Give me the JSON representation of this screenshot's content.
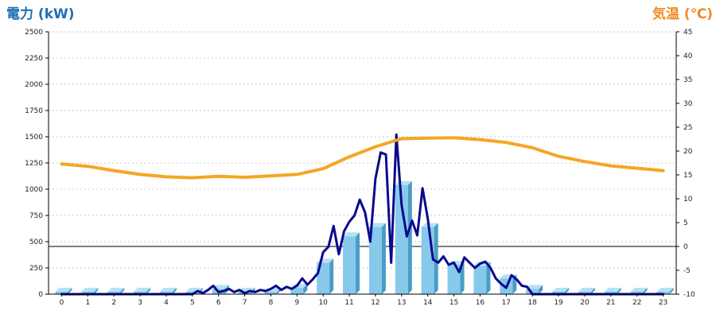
{
  "chart_data": {
    "type": "bar",
    "title_left": "電力 (kW)",
    "title_right": "気温 (℃)",
    "categories": [
      "0",
      "1",
      "2",
      "3",
      "4",
      "5",
      "6",
      "7",
      "8",
      "9",
      "10",
      "11",
      "12",
      "13",
      "14",
      "15",
      "16",
      "17",
      "18",
      "19",
      "20",
      "21",
      "22",
      "23"
    ],
    "y_left": {
      "ylim": [
        0,
        2500
      ],
      "ticks": [
        "0",
        "250",
        "500",
        "750",
        "1000",
        "1250",
        "1500",
        "1750",
        "2000",
        "2250",
        "2500"
      ]
    },
    "y_right": {
      "ylim": [
        -10,
        45
      ],
      "ticks": [
        "-10",
        "-5",
        "0",
        "5",
        "10",
        "15",
        "20",
        "25",
        "30",
        "35",
        "40",
        "45"
      ]
    },
    "grid": true,
    "zero_line_right": 0,
    "colors": {
      "bar": "#87c9eb",
      "bar_dark": "#4a9cc4",
      "bar_top": "#b5e0f5",
      "power_line": "#0a0a8c",
      "temp_line": "#f5a623",
      "left_title": "#1f6fb5",
      "right_title": "#f08a24"
    },
    "series": [
      {
        "kind": "bar",
        "axis": "left",
        "values": [
          0,
          0,
          0,
          0,
          0,
          0,
          50,
          20,
          20,
          60,
          300,
          550,
          640,
          1040,
          640,
          280,
          270,
          150,
          50,
          0,
          0,
          0,
          0,
          0
        ]
      },
      {
        "kind": "line",
        "axis": "left",
        "x": [
          0,
          1,
          2,
          3,
          4,
          5,
          5.2,
          5.4,
          5.6,
          5.8,
          6,
          6.2,
          6.4,
          6.6,
          6.8,
          7,
          7.2,
          7.4,
          7.6,
          7.8,
          8,
          8.2,
          8.4,
          8.6,
          8.8,
          9,
          9.2,
          9.4,
          9.6,
          9.8,
          10,
          10.2,
          10.4,
          10.6,
          10.8,
          11,
          11.2,
          11.4,
          11.6,
          11.8,
          12,
          12.2,
          12.4,
          12.6,
          12.8,
          13,
          13.2,
          13.4,
          13.6,
          13.8,
          14,
          14.2,
          14.4,
          14.6,
          14.8,
          15,
          15.2,
          15.4,
          15.6,
          15.8,
          16,
          16.2,
          16.4,
          16.6,
          16.8,
          17,
          17.2,
          17.4,
          17.6,
          17.8,
          18,
          18.2,
          19,
          20,
          21,
          22,
          23
        ],
        "values": [
          0,
          0,
          0,
          0,
          0,
          0,
          30,
          10,
          40,
          80,
          20,
          30,
          50,
          20,
          40,
          10,
          30,
          20,
          40,
          30,
          50,
          80,
          40,
          70,
          50,
          80,
          150,
          90,
          140,
          200,
          400,
          450,
          650,
          380,
          600,
          690,
          750,
          900,
          780,
          500,
          1100,
          1350,
          1330,
          300,
          1520,
          850,
          550,
          700,
          560,
          1010,
          720,
          330,
          300,
          360,
          280,
          300,
          210,
          350,
          300,
          250,
          290,
          310,
          250,
          150,
          100,
          60,
          180,
          140,
          80,
          70,
          0,
          0,
          0,
          0,
          0,
          0,
          0
        ],
        "color_key": "power_line"
      },
      {
        "kind": "line",
        "axis": "right",
        "name": "",
        "x": [
          0,
          1,
          2,
          3,
          4,
          5,
          6,
          7,
          8,
          9,
          10,
          11,
          12,
          13,
          14,
          15,
          16,
          17,
          18,
          19,
          20,
          21,
          22,
          23
        ],
        "values": [
          17.3,
          16.8,
          15.9,
          15.1,
          14.6,
          14.4,
          14.7,
          14.5,
          14.8,
          15.1,
          16.3,
          18.8,
          20.9,
          22.6,
          22.7,
          22.8,
          22.4,
          21.8,
          20.7,
          18.9,
          17.8,
          16.9,
          16.4,
          15.9
        ],
        "color_key": "temp_line"
      }
    ]
  }
}
